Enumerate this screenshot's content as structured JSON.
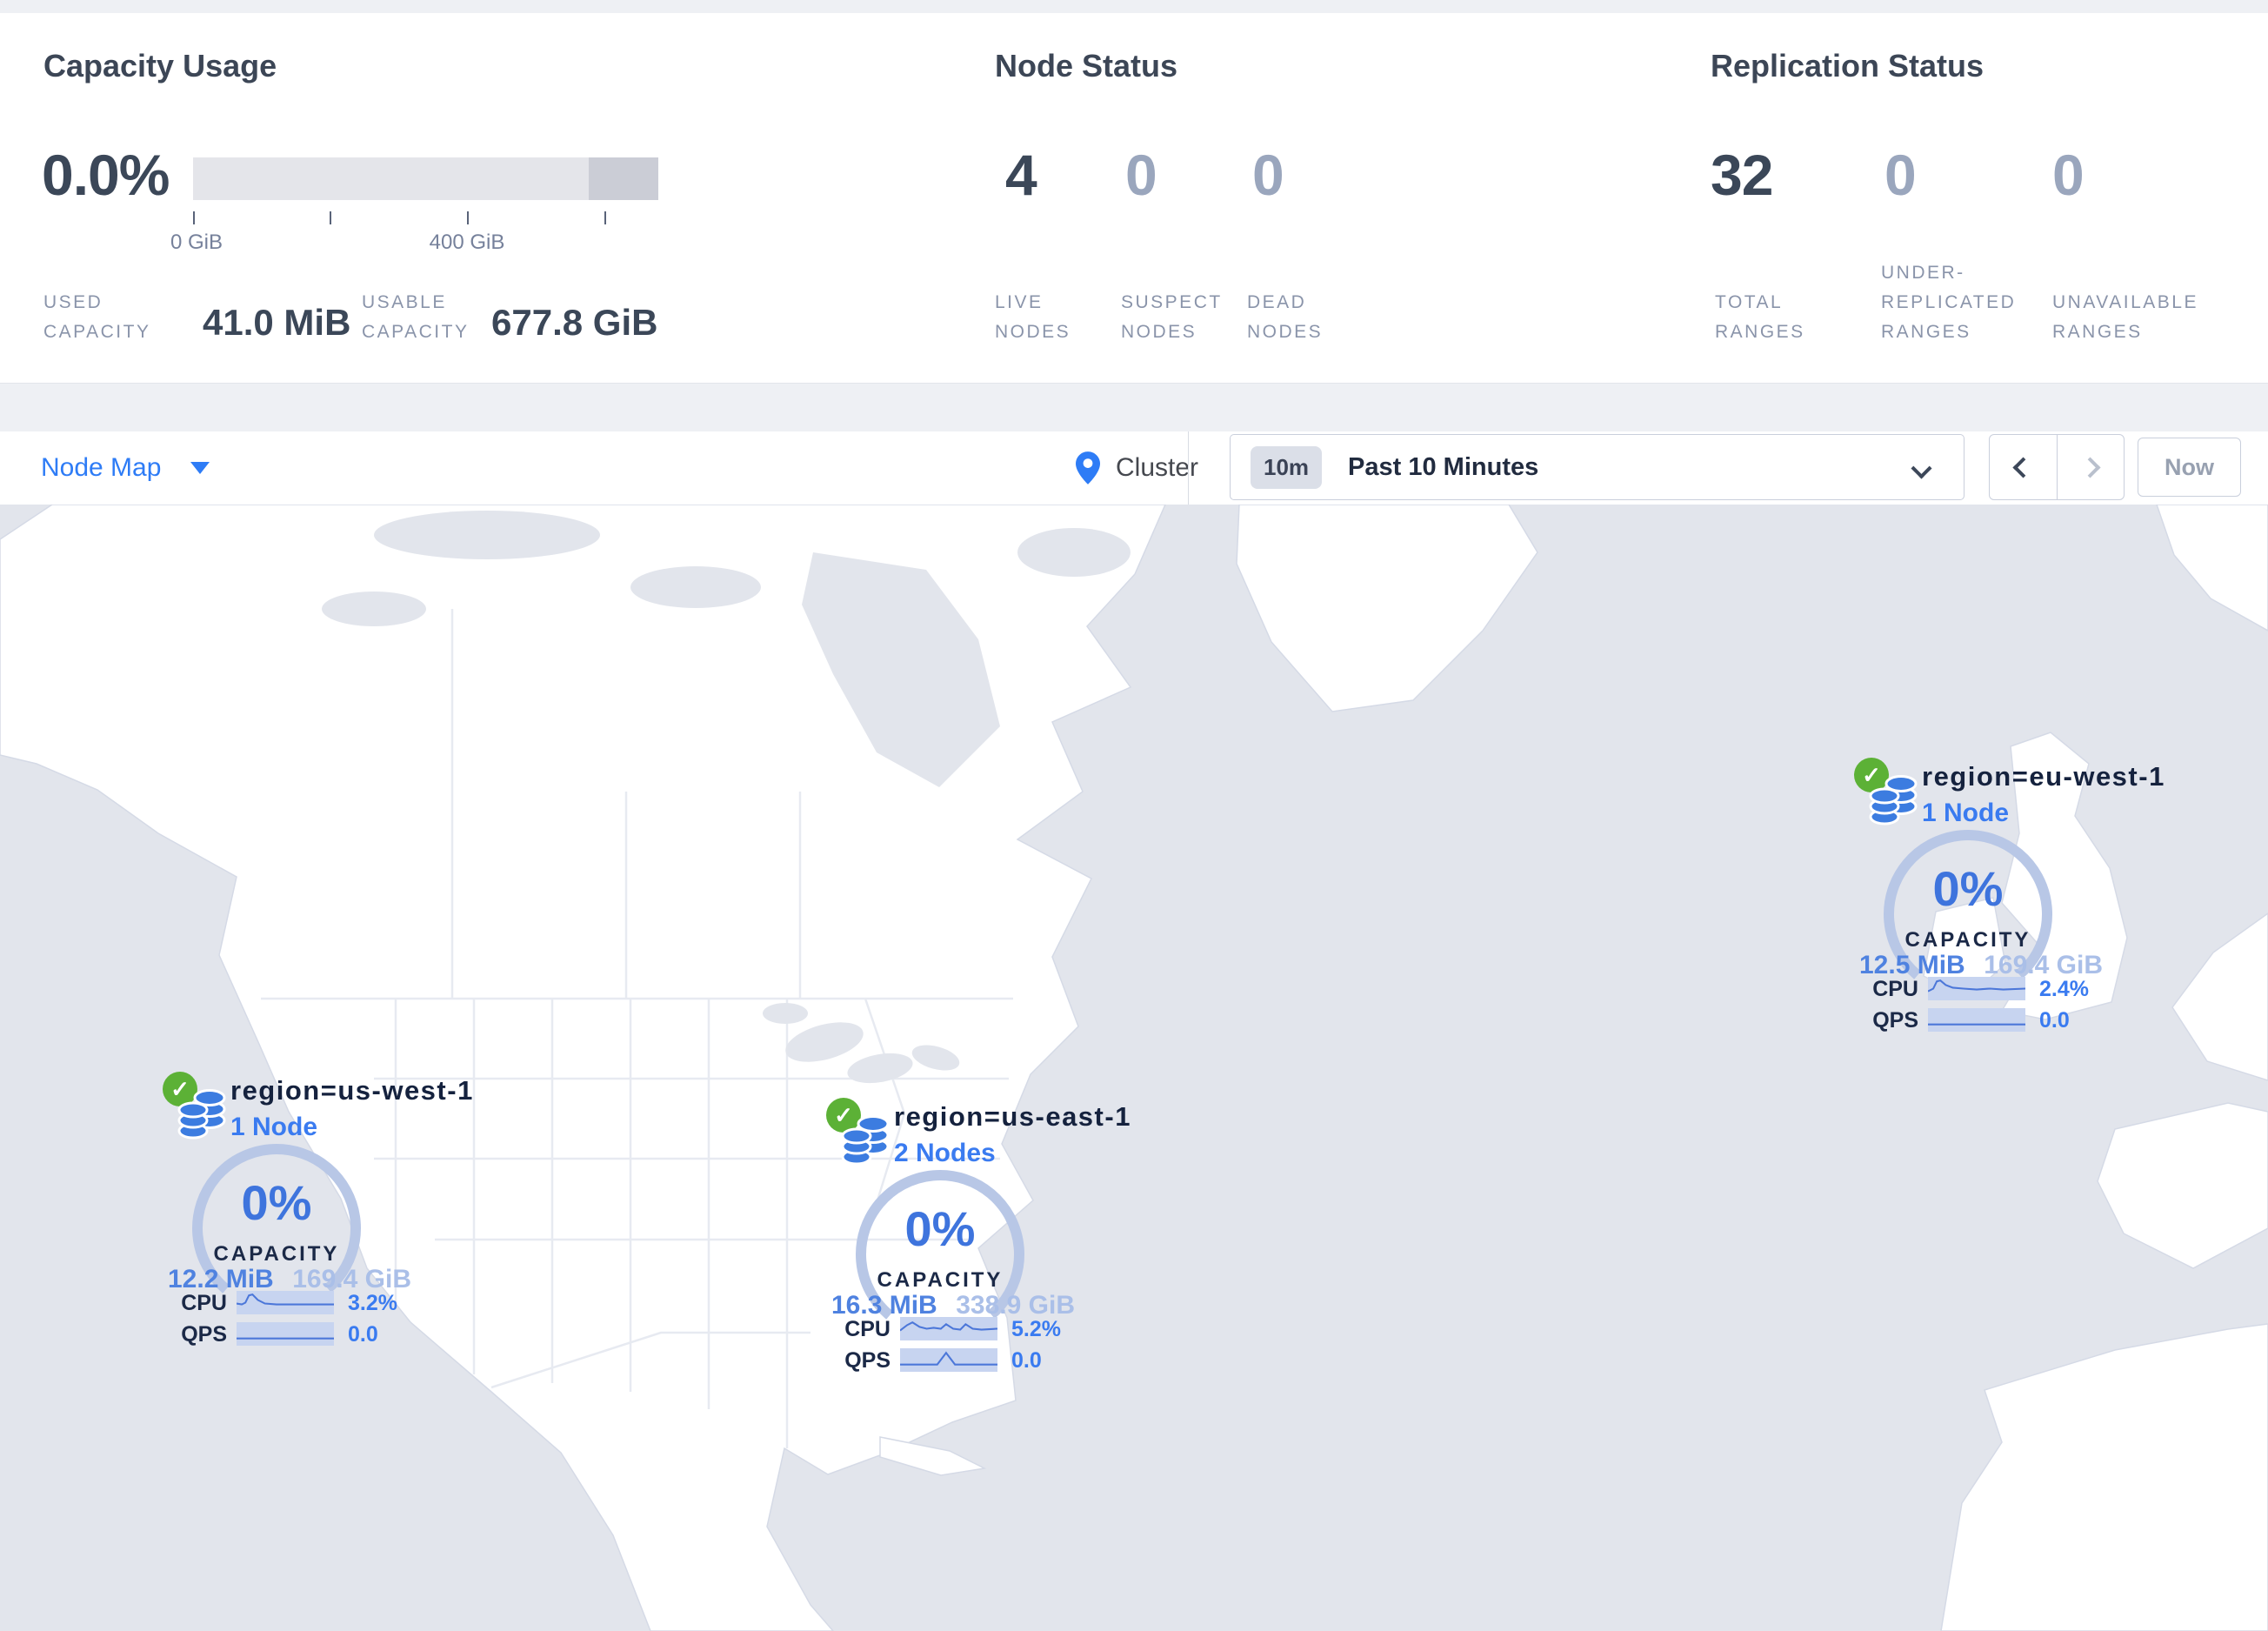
{
  "colors": {
    "accent_blue": "#2e7cf6",
    "gauge_blue": "#3e74dd",
    "gauge_arc": "#b8c7e6",
    "ok_green": "#5cb136",
    "map_water": "#e2e5ec",
    "map_land": "#ffffff",
    "bar_light": "#e4e5ea",
    "bar_dark": "#cbcdd6",
    "muted_num": "#9aa6bd",
    "dark_text": "#3b4758"
  },
  "stats": {
    "capacity": {
      "title": "Capacity Usage",
      "percent": "0.0%",
      "tick_labels": [
        "0 GiB",
        "400 GiB"
      ],
      "used_label": "USED\nCAPACITY",
      "used_value": "41.0 MiB",
      "usable_label": "USABLE\nCAPACITY",
      "usable_value": "677.8 GiB"
    },
    "nodes": {
      "title": "Node Status",
      "items": [
        {
          "value": "4",
          "label": "LIVE\nNODES"
        },
        {
          "value": "0",
          "label": "SUSPECT\nNODES"
        },
        {
          "value": "0",
          "label": "DEAD\nNODES"
        }
      ]
    },
    "replication": {
      "title": "Replication Status",
      "items": [
        {
          "value": "32",
          "label": "TOTAL\nRANGES"
        },
        {
          "value": "0",
          "label": "UNDER-\nREPLICATED\nRANGES"
        },
        {
          "value": "0",
          "label": "UNAVAILABLE\nRANGES"
        }
      ]
    }
  },
  "toolbar": {
    "view": "Node Map",
    "breadcrumb": "Cluster",
    "time_badge": "10m",
    "time_range": "Past 10 Minutes",
    "now": "Now"
  },
  "map": {
    "markers": [
      {
        "region": "region=us-west-1",
        "nodes": "1 Node",
        "capacity_percent": "0%",
        "capacity_label": "CAPACITY",
        "used": "12.2 MiB",
        "total": "169.4 GiB",
        "cpu_label": "CPU",
        "cpu_value": "3.2%",
        "qps_label": "QPS",
        "qps_value": "0.0",
        "cpu_spark": [
          [
            0,
            14
          ],
          [
            6,
            15
          ],
          [
            10,
            13
          ],
          [
            14,
            5
          ],
          [
            18,
            4
          ],
          [
            24,
            10
          ],
          [
            32,
            14
          ],
          [
            45,
            15
          ],
          [
            60,
            15
          ],
          [
            75,
            15
          ],
          [
            88,
            15
          ],
          [
            110,
            15
          ]
        ],
        "qps_spark": [
          [
            0,
            18
          ],
          [
            110,
            18
          ]
        ]
      },
      {
        "region": "region=us-east-1",
        "nodes": "2 Nodes",
        "capacity_percent": "0%",
        "capacity_label": "CAPACITY",
        "used": "16.3 MiB",
        "total": "338.9 GiB",
        "cpu_label": "CPU",
        "cpu_value": "5.2%",
        "qps_label": "QPS",
        "qps_value": "0.0",
        "cpu_spark": [
          [
            0,
            15
          ],
          [
            8,
            9
          ],
          [
            14,
            6
          ],
          [
            22,
            11
          ],
          [
            30,
            13
          ],
          [
            38,
            12
          ],
          [
            46,
            13
          ],
          [
            52,
            8
          ],
          [
            60,
            13
          ],
          [
            68,
            14
          ],
          [
            74,
            8
          ],
          [
            82,
            13
          ],
          [
            92,
            14
          ],
          [
            110,
            13
          ]
        ],
        "qps_spark": [
          [
            0,
            18
          ],
          [
            42,
            18
          ],
          [
            52,
            5
          ],
          [
            62,
            18
          ],
          [
            110,
            18
          ]
        ]
      },
      {
        "region": "region=eu-west-1",
        "nodes": "1 Node",
        "capacity_percent": "0%",
        "capacity_label": "CAPACITY",
        "used": "12.5 MiB",
        "total": "169.4 GiB",
        "cpu_label": "CPU",
        "cpu_value": "2.4%",
        "qps_label": "QPS",
        "qps_value": "0.0",
        "cpu_spark": [
          [
            0,
            16
          ],
          [
            6,
            13
          ],
          [
            10,
            5
          ],
          [
            14,
            4
          ],
          [
            20,
            9
          ],
          [
            28,
            12
          ],
          [
            40,
            13
          ],
          [
            55,
            14
          ],
          [
            70,
            13
          ],
          [
            85,
            14
          ],
          [
            110,
            13
          ]
        ],
        "qps_spark": [
          [
            0,
            18
          ],
          [
            110,
            18
          ]
        ]
      }
    ]
  }
}
